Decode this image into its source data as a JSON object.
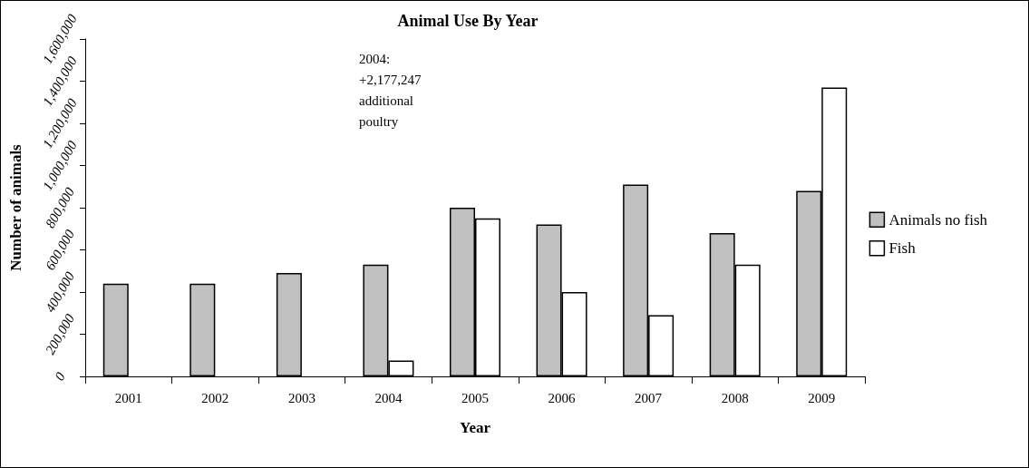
{
  "chart_data": {
    "type": "bar",
    "title": "Animal Use By Year",
    "xlabel": "Year",
    "ylabel": "Number of animals",
    "categories": [
      "2001",
      "2002",
      "2003",
      "2004",
      "2005",
      "2006",
      "2007",
      "2008",
      "2009"
    ],
    "series": [
      {
        "name": "Animals no fish",
        "color": "#c0c0c0",
        "values": [
          440000,
          440000,
          490000,
          530000,
          800000,
          720000,
          910000,
          680000,
          880000
        ]
      },
      {
        "name": "Fish",
        "color": "#ffffff",
        "values": [
          null,
          null,
          null,
          75000,
          750000,
          400000,
          290000,
          530000,
          1370000
        ]
      }
    ],
    "ylim": [
      0,
      1600000
    ],
    "yticks": [
      {
        "value": 0,
        "label": "0"
      },
      {
        "value": 200000,
        "label": "200,000"
      },
      {
        "value": 400000,
        "label": "400,000"
      },
      {
        "value": 600000,
        "label": "600,000"
      },
      {
        "value": 800000,
        "label": "800,000"
      },
      {
        "value": 1000000,
        "label": "1,000,000"
      },
      {
        "value": 1200000,
        "label": "1,200,000"
      },
      {
        "value": 1400000,
        "label": "1,400,000"
      },
      {
        "value": 1600000,
        "label": "1,600,000"
      }
    ],
    "grid": false,
    "legend": "right",
    "annotations": [
      "2004:\n+2,177,247\nadditional\npoultry"
    ]
  }
}
